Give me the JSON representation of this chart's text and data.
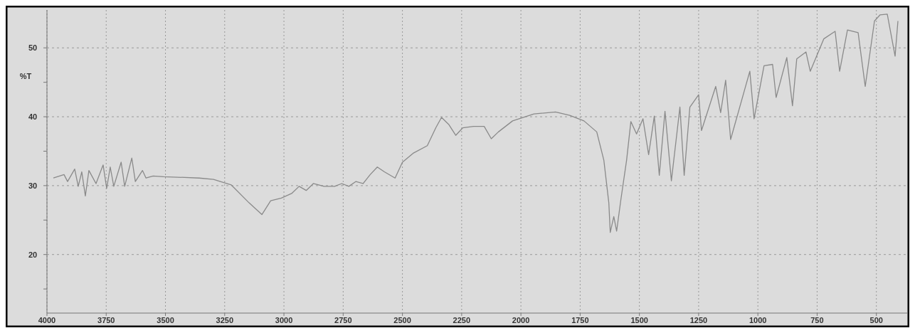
{
  "chart_data": {
    "type": "line",
    "ylabel": "%T",
    "xlim": [
      4000,
      370
    ],
    "ylim": [
      11.5,
      55.5
    ],
    "xticks": [
      {
        "value": 4000,
        "label": "4000"
      },
      3750,
      3500,
      3250,
      3000,
      2750,
      2500,
      2250,
      2000,
      1750,
      1500,
      1250,
      1000,
      750,
      500
    ],
    "yticks": [
      {
        "value": 15,
        "label": null
      },
      20,
      {
        "value": 25,
        "label": null
      },
      30,
      {
        "value": 35,
        "label": null
      },
      40,
      {
        "value": 45,
        "label": null
      },
      50
    ],
    "grid": true,
    "line_style": "solid",
    "marker": "none",
    "x": [
      3973,
      3928,
      3913,
      3883,
      3868,
      3853,
      3838,
      3823,
      3793,
      3763,
      3748,
      3733,
      3718,
      3687,
      3672,
      3642,
      3627,
      3597,
      3582,
      3552,
      3507,
      3357,
      3297,
      3222,
      3147,
      3093,
      3056,
      3011,
      2966,
      2936,
      2906,
      2876,
      2831,
      2786,
      2756,
      2726,
      2696,
      2666,
      2636,
      2606,
      2576,
      2531,
      2500,
      2455,
      2395,
      2359,
      2335,
      2305,
      2275,
      2245,
      2200,
      2155,
      2125,
      2095,
      2035,
      1945,
      1854,
      1794,
      1734,
      1680,
      1650,
      1629,
      1623,
      1608,
      1596,
      1578,
      1554,
      1536,
      1512,
      1485,
      1461,
      1437,
      1416,
      1392,
      1365,
      1329,
      1311,
      1287,
      1250,
      1238,
      1178,
      1157,
      1136,
      1115,
      1034,
      1016,
      974,
      938,
      923,
      878,
      854,
      836,
      797,
      779,
      722,
      674,
      655,
      622,
      577,
      547,
      508,
      484,
      454,
      421,
      409
    ],
    "series": [
      {
        "color": "#8a8a8a",
        "values": [
          31.1,
          31.6,
          30.6,
          32.4,
          29.9,
          32.0,
          28.5,
          32.2,
          30.3,
          33.0,
          29.6,
          32.7,
          29.9,
          33.4,
          29.9,
          34.0,
          30.6,
          32.2,
          31.1,
          31.4,
          31.3,
          31.1,
          30.9,
          30.1,
          27.5,
          25.8,
          27.8,
          28.2,
          28.9,
          29.9,
          29.3,
          30.3,
          29.9,
          29.9,
          30.3,
          29.9,
          30.6,
          30.3,
          31.6,
          32.7,
          32.0,
          31.1,
          33.4,
          34.7,
          35.8,
          38.4,
          39.9,
          38.9,
          37.3,
          38.4,
          38.6,
          38.6,
          36.8,
          37.8,
          39.4,
          40.4,
          40.7,
          40.2,
          39.4,
          37.8,
          33.7,
          27.5,
          23.2,
          25.5,
          23.4,
          28.0,
          33.7,
          39.3,
          37.5,
          39.7,
          34.5,
          40.1,
          31.5,
          40.8,
          30.7,
          41.4,
          31.5,
          41.4,
          43.2,
          38.0,
          44.4,
          40.6,
          45.3,
          36.7,
          46.6,
          39.7,
          47.4,
          47.6,
          42.8,
          48.6,
          41.6,
          48.4,
          49.4,
          46.6,
          51.3,
          52.4,
          46.6,
          52.6,
          52.2,
          44.4,
          53.9,
          54.8,
          54.9,
          48.8,
          53.9
        ]
      }
    ]
  }
}
